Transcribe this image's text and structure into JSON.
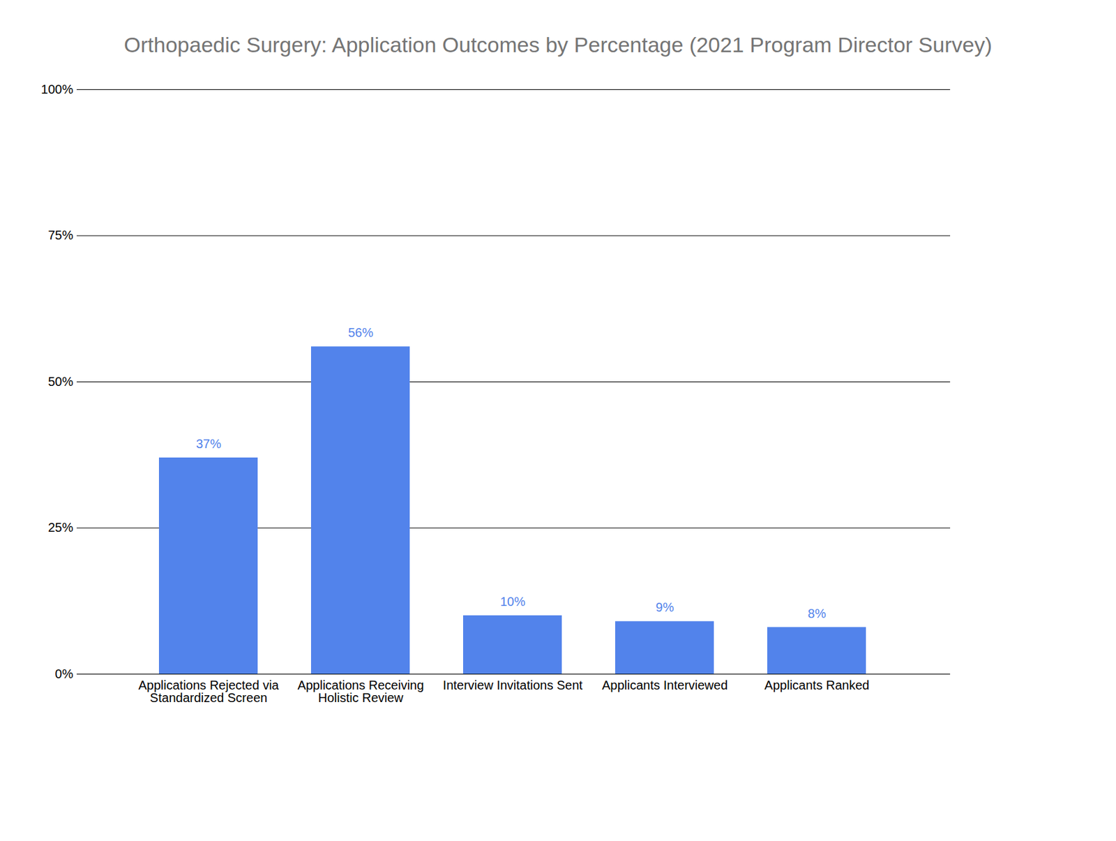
{
  "chart_data": {
    "type": "bar",
    "title": "Orthopaedic Surgery: Application Outcomes by Percentage (2021 Program Director Survey)",
    "categories": [
      "Applications Rejected via\nStandardized Screen",
      "Applications Receiving\nHolistic Review",
      "Interview Invitations Sent",
      "Applicants Interviewed",
      "Applicants Ranked"
    ],
    "values": [
      37,
      56,
      10,
      9,
      8
    ],
    "value_labels": [
      "37%",
      "56%",
      "10%",
      "9%",
      "8%"
    ],
    "color": "#5283eb",
    "ylim": [
      0,
      100
    ],
    "yticks": [
      {
        "value": 0,
        "label": "0%"
      },
      {
        "value": 25,
        "label": "25%"
      },
      {
        "value": 50,
        "label": "50%"
      },
      {
        "value": 75,
        "label": "75%"
      },
      {
        "value": 100,
        "label": "100%"
      }
    ],
    "grid": true,
    "data_labels": true
  }
}
